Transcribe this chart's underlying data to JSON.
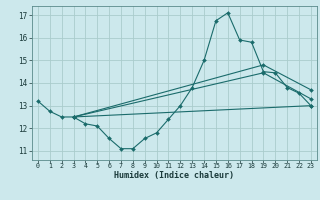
{
  "xlabel": "Humidex (Indice chaleur)",
  "background_color": "#cce8ec",
  "grid_color": "#aacccc",
  "line_color": "#1a6b6b",
  "xlim": [
    -0.5,
    23.5
  ],
  "ylim": [
    10.6,
    17.4
  ],
  "yticks": [
    11,
    12,
    13,
    14,
    15,
    16,
    17
  ],
  "xticks": [
    0,
    1,
    2,
    3,
    4,
    5,
    6,
    7,
    8,
    9,
    10,
    11,
    12,
    13,
    14,
    15,
    16,
    17,
    18,
    19,
    20,
    21,
    22,
    23
  ],
  "lines": [
    {
      "x": [
        0,
        1,
        2,
        3,
        4,
        5,
        6,
        7,
        8,
        9,
        10,
        11,
        12,
        13,
        14,
        15,
        16,
        17,
        18,
        19,
        20,
        21,
        22,
        23
      ],
      "y": [
        13.2,
        12.75,
        12.5,
        12.5,
        12.2,
        12.1,
        11.55,
        11.1,
        11.1,
        11.55,
        11.8,
        12.4,
        13.0,
        13.8,
        15.0,
        16.75,
        17.1,
        15.9,
        15.8,
        14.5,
        14.45,
        13.8,
        13.55,
        13.0
      ]
    },
    {
      "comment": "straight line top - from (3,12.5) to (19,14.8) to (23,13.7)",
      "x": [
        3,
        19,
        23
      ],
      "y": [
        12.5,
        14.8,
        13.7
      ]
    },
    {
      "x": [
        3,
        19,
        23
      ],
      "y": [
        12.5,
        14.45,
        13.3
      ]
    },
    {
      "x": [
        3,
        23
      ],
      "y": [
        12.5,
        13.0
      ]
    }
  ]
}
